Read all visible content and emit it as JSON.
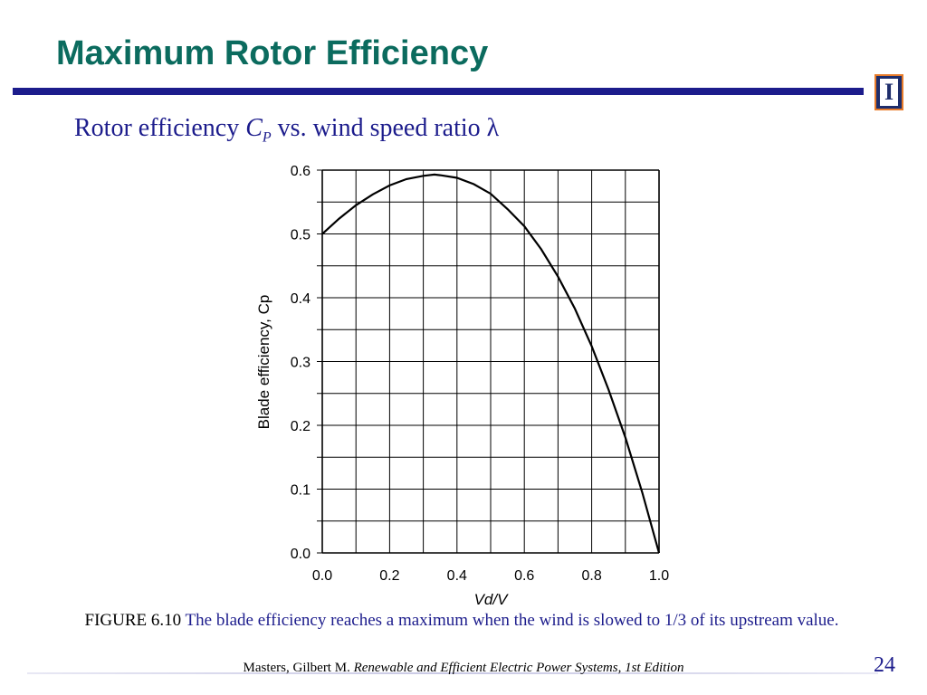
{
  "slide": {
    "title": "Maximum Rotor Efficiency",
    "subtitle_lead": "Rotor efficiency ",
    "subtitle_symbol": "C",
    "subtitle_sub": "P",
    "subtitle_tail": " vs. wind speed ratio λ",
    "caption_label": "FIGURE 6.10",
    "caption_text": " The blade efficiency reaches a maximum when the wind is slowed to 1/3 of its upstream value.",
    "citation_authors": "Masters, Gilbert M. ",
    "citation_book": "Renewable and Efficient Electric Power Systems, 1st Edition",
    "page_number": "24",
    "logo_letter": "I"
  },
  "colors": {
    "title": "#0b6b5e",
    "rule": "#1c1c8c",
    "subtitle": "#1c1c8c",
    "logo_bg": "#1e2d6b",
    "logo_border": "#e77b2a"
  },
  "chart_data": {
    "type": "line",
    "xlabel": "Vd/V",
    "ylabel": "Blade efficiency, Cp",
    "xlim": [
      0,
      1
    ],
    "ylim": [
      0,
      0.6
    ],
    "xticks": [
      "0.0",
      "0.2",
      "0.4",
      "0.6",
      "0.8",
      "1.0"
    ],
    "yticks": [
      "0.0",
      "0.1",
      "0.2",
      "0.3",
      "0.4",
      "0.5",
      "0.6"
    ],
    "grid": true,
    "x": [
      0,
      0.05,
      0.1,
      0.15,
      0.2,
      0.25,
      0.3,
      0.333,
      0.35,
      0.4,
      0.45,
      0.5,
      0.55,
      0.6,
      0.65,
      0.7,
      0.75,
      0.8,
      0.85,
      0.9,
      0.95,
      1.0
    ],
    "y": [
      0.5,
      0.524,
      0.545,
      0.562,
      0.576,
      0.586,
      0.591,
      0.593,
      0.592,
      0.588,
      0.578,
      0.563,
      0.539,
      0.512,
      0.476,
      0.433,
      0.383,
      0.324,
      0.256,
      0.181,
      0.095,
      0.0
    ]
  }
}
